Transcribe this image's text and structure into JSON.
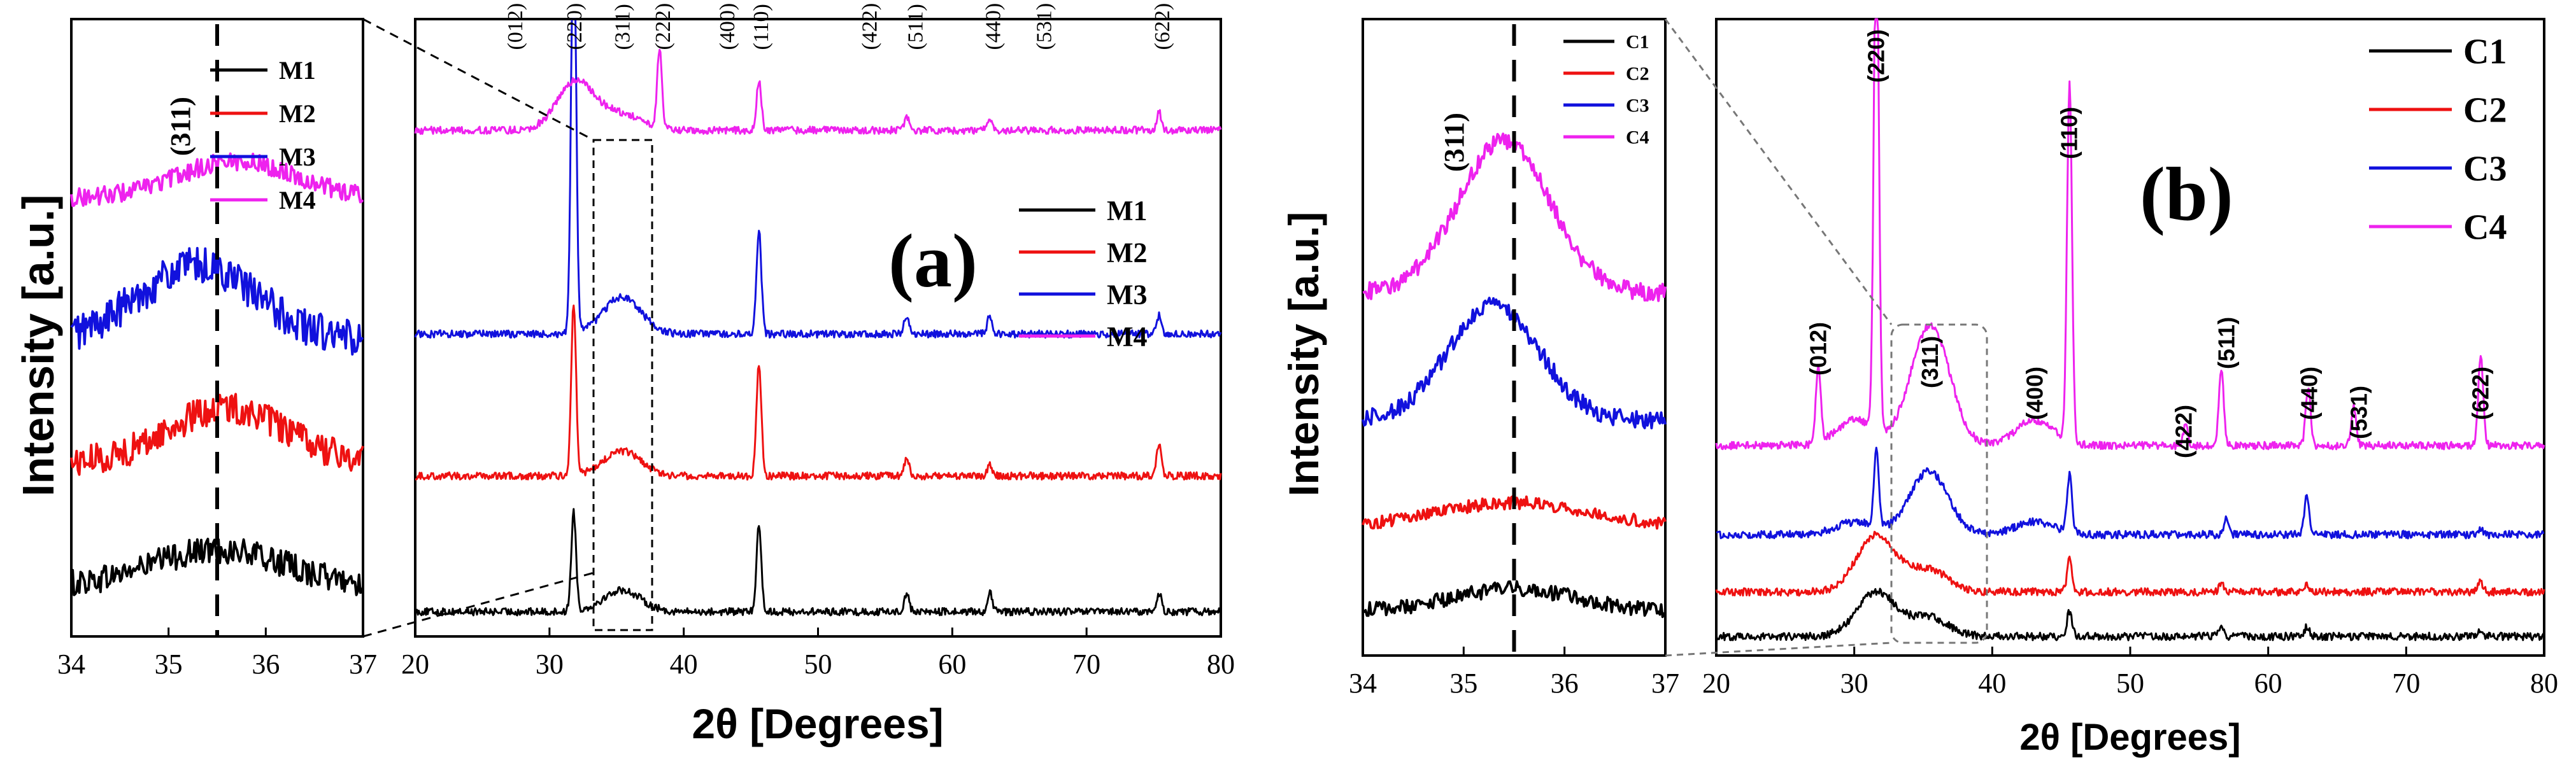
{
  "chart_data": [
    {
      "id": "a-inset",
      "type": "line",
      "title": "",
      "xlabel": "",
      "ylabel": "Intensity [a.u.]",
      "xlim": [
        34,
        37
      ],
      "xticks": [
        34,
        35,
        36,
        37
      ],
      "marker_x": 35.5,
      "marker_label": "(311)",
      "legend": [
        "M1",
        "M2",
        "M3",
        "M4"
      ],
      "series": [
        {
          "name": "M1",
          "color": "#000000",
          "offset": 0.08,
          "peak": 0.06,
          "center": 35.5,
          "width": 0.7,
          "noise": 0.022
        },
        {
          "name": "M2",
          "color": "#ee1111",
          "offset": 0.28,
          "peak": 0.09,
          "center": 35.6,
          "width": 0.6,
          "noise": 0.025
        },
        {
          "name": "M3",
          "color": "#1111dd",
          "offset": 0.48,
          "peak": 0.12,
          "center": 35.3,
          "width": 0.6,
          "noise": 0.03
        },
        {
          "name": "M4",
          "color": "#ee22ee",
          "offset": 0.71,
          "peak": 0.06,
          "center": 35.7,
          "width": 0.6,
          "noise": 0.015
        }
      ]
    },
    {
      "id": "a-main",
      "type": "line",
      "title": "(a)",
      "xlabel": "2θ [Degrees]",
      "ylabel": "",
      "xlim": [
        20,
        80
      ],
      "xticks": [
        20,
        30,
        40,
        50,
        60,
        70,
        80
      ],
      "legend": [
        "M1",
        "M2",
        "M3",
        "M4"
      ],
      "peak_labels": [
        {
          "label": "(012)",
          "x": 27.4
        },
        {
          "label": "(220)",
          "x": 31.8
        },
        {
          "label": "(311)",
          "x": 35.4
        },
        {
          "label": "(222)",
          "x": 38.4
        },
        {
          "label": "(400)",
          "x": 43.2
        },
        {
          "label": "(110)",
          "x": 45.7
        },
        {
          "label": "(422)",
          "x": 53.8
        },
        {
          "label": "(511)",
          "x": 57.2
        },
        {
          "label": "(440)",
          "x": 63.0
        },
        {
          "label": "(531)",
          "x": 66.8
        },
        {
          "label": "(622)",
          "x": 75.6
        }
      ],
      "series": [
        {
          "name": "M1",
          "color": "#000000",
          "offset": 0.04,
          "peaks": [
            [
              31.8,
              0.16
            ],
            [
              35.4,
              0.035
            ],
            [
              45.6,
              0.14
            ],
            [
              56.6,
              0.03
            ],
            [
              62.8,
              0.03
            ],
            [
              75.4,
              0.03
            ]
          ]
        },
        {
          "name": "M2",
          "color": "#ee1111",
          "offset": 0.26,
          "peaks": [
            [
              31.8,
              0.28
            ],
            [
              35.4,
              0.04
            ],
            [
              45.6,
              0.18
            ],
            [
              56.6,
              0.03
            ],
            [
              62.8,
              0.02
            ],
            [
              75.4,
              0.05
            ]
          ]
        },
        {
          "name": "M3",
          "color": "#1111dd",
          "offset": 0.49,
          "peaks": [
            [
              31.8,
              0.72
            ],
            [
              35.4,
              0.06
            ],
            [
              45.6,
              0.17
            ],
            [
              56.6,
              0.03
            ],
            [
              62.8,
              0.03
            ],
            [
              75.4,
              0.03
            ]
          ]
        },
        {
          "name": "M4",
          "color": "#ee22ee",
          "offset": 0.82,
          "peaks": [
            [
              32.0,
              0.08
            ],
            [
              35.4,
              0.025
            ],
            [
              38.2,
              0.13
            ],
            [
              45.6,
              0.08
            ],
            [
              56.6,
              0.02
            ],
            [
              62.8,
              0.02
            ],
            [
              75.4,
              0.03
            ]
          ]
        }
      ]
    },
    {
      "id": "b-inset",
      "type": "line",
      "title": "",
      "xlabel": "",
      "ylabel": "Intensity [a.u.]",
      "xlim": [
        34,
        37
      ],
      "xticks": [
        34,
        35,
        36,
        37
      ],
      "marker_x": 35.5,
      "marker_label": "(311)",
      "legend": [
        "C1",
        "C2",
        "C3",
        "C4"
      ],
      "series": [
        {
          "name": "C1",
          "color": "#000000",
          "offset": 0.07,
          "peak": 0.035,
          "center": 35.5,
          "width": 0.6,
          "noise": 0.012
        },
        {
          "name": "C2",
          "color": "#ee1111",
          "offset": 0.2,
          "peak": 0.04,
          "center": 35.5,
          "width": 0.8,
          "noise": 0.01
        },
        {
          "name": "C3",
          "color": "#1111dd",
          "offset": 0.37,
          "peak": 0.18,
          "center": 35.3,
          "width": 0.45,
          "noise": 0.014
        },
        {
          "name": "C4",
          "color": "#ee22ee",
          "offset": 0.57,
          "peak": 0.24,
          "center": 35.4,
          "width": 0.45,
          "noise": 0.014
        }
      ]
    },
    {
      "id": "b-main",
      "type": "line",
      "title": "(b)",
      "xlabel": "2θ [Degrees]",
      "ylabel": "",
      "xlim": [
        20,
        80
      ],
      "xticks": [
        20,
        30,
        40,
        50,
        60,
        70,
        80
      ],
      "legend": [
        "C1",
        "C2",
        "C3",
        "C4"
      ],
      "peak_labels": [
        {
          "label": "(012)",
          "x": 27.4,
          "level": 0.44
        },
        {
          "label": "(220)",
          "x": 31.6,
          "level": 0.9
        },
        {
          "label": "(311)",
          "x": 35.5,
          "level": 0.42
        },
        {
          "label": "(400)",
          "x": 43.1,
          "level": 0.37
        },
        {
          "label": "(110)",
          "x": 45.6,
          "level": 0.78
        },
        {
          "label": "(422)",
          "x": 53.9,
          "level": 0.31
        },
        {
          "label": "(511)",
          "x": 57.0,
          "level": 0.45
        },
        {
          "label": "(440)",
          "x": 63.0,
          "level": 0.37
        },
        {
          "label": "(531)",
          "x": 66.6,
          "level": 0.34
        },
        {
          "label": "(622)",
          "x": 75.4,
          "level": 0.37
        }
      ],
      "series": [
        {
          "name": "C1",
          "color": "#000000",
          "offset": 0.03,
          "peaks": [
            [
              31.6,
              0.07
            ],
            [
              35.4,
              0.03
            ],
            [
              45.6,
              0.04
            ],
            [
              56.6,
              0.012
            ],
            [
              62.8,
              0.015
            ],
            [
              75.4,
              0.01
            ]
          ]
        },
        {
          "name": "C2",
          "color": "#ee1111",
          "offset": 0.1,
          "peaks": [
            [
              31.6,
              0.09
            ],
            [
              35.4,
              0.035
            ],
            [
              45.6,
              0.05
            ],
            [
              56.6,
              0.012
            ],
            [
              62.8,
              0.01
            ],
            [
              75.4,
              0.015
            ]
          ]
        },
        {
          "name": "C3",
          "color": "#1111dd",
          "offset": 0.19,
          "peaks": [
            [
              30.1,
              0.02
            ],
            [
              31.6,
              0.12
            ],
            [
              35.4,
              0.1
            ],
            [
              43.1,
              0.02
            ],
            [
              45.6,
              0.09
            ],
            [
              57.0,
              0.025
            ],
            [
              62.8,
              0.06
            ],
            [
              75.4,
              0.01
            ]
          ]
        },
        {
          "name": "C4",
          "color": "#ee22ee",
          "offset": 0.33,
          "peaks": [
            [
              27.4,
              0.12
            ],
            [
              30.1,
              0.04
            ],
            [
              31.6,
              0.82
            ],
            [
              35.5,
              0.19
            ],
            [
              43.1,
              0.04
            ],
            [
              45.6,
              0.56
            ],
            [
              54.0,
              0.03
            ],
            [
              56.6,
              0.12
            ],
            [
              62.9,
              0.09
            ],
            [
              66.2,
              0.06
            ],
            [
              75.4,
              0.14
            ]
          ]
        }
      ]
    }
  ]
}
